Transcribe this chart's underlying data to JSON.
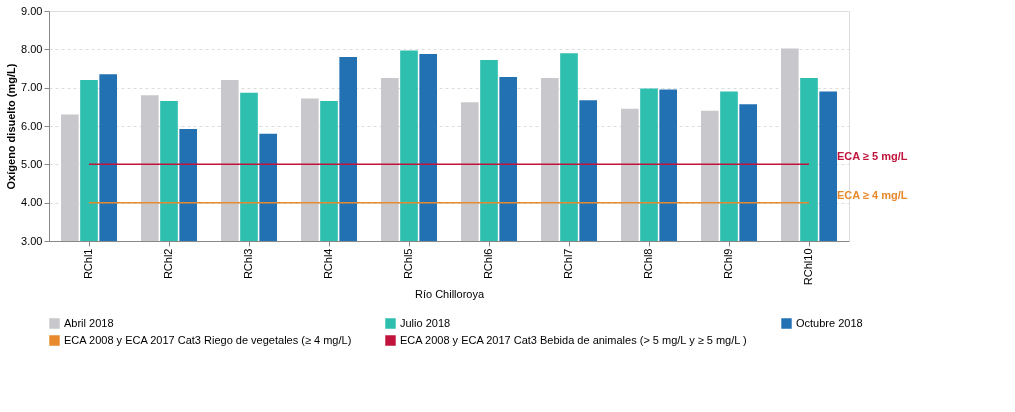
{
  "chart_data": {
    "type": "bar",
    "xlabel": "Río Chilloroya",
    "ylabel": "Oxígeno disuelto (mg/L)",
    "categories": [
      "RChl1",
      "RChl2",
      "RChl3",
      "RChl4",
      "RChl5",
      "RChl6",
      "RChl7",
      "RChl8",
      "RChl9",
      "RChl10"
    ],
    "series": [
      {
        "name": "Abril 2018",
        "color": "#c8c8cc",
        "values": [
          6.3,
          6.8,
          7.2,
          6.72,
          7.25,
          6.62,
          7.25,
          6.45,
          6.4,
          8.02
        ]
      },
      {
        "name": "Julio 2018",
        "color": "#2ebfae",
        "values": [
          7.2,
          6.65,
          6.87,
          6.65,
          7.97,
          7.72,
          7.9,
          6.98,
          6.9,
          7.25
        ]
      },
      {
        "name": "Octubre 2018",
        "color": "#2271b3",
        "values": [
          7.35,
          5.92,
          5.8,
          7.8,
          7.88,
          7.28,
          6.67,
          6.95,
          6.57,
          6.9
        ]
      },
      {
        "name": "ECA 2008 y ECA 2017 Cat3 Riego de vegetales (≥ 4 mg/L)",
        "type": "line",
        "color": "#e8892c",
        "values": [
          4,
          4,
          4,
          4,
          4,
          4,
          4,
          4,
          4,
          4
        ]
      },
      {
        "name": "ECA 2008 y ECA 2017 Cat3 Bebida de animales (> 5 mg/L y ≥ 5 mg/L )",
        "type": "line",
        "color": "#c0143c",
        "values": [
          5,
          5,
          5,
          5,
          5,
          5,
          5,
          5,
          5,
          5
        ]
      }
    ],
    "annotations": [
      {
        "text": "ECA ≥ 5 mg/L",
        "x": "RChl10",
        "y": 5
      },
      {
        "text": "ECA ≥ 4 mg/L",
        "x": "RChl10",
        "y": 4
      }
    ],
    "ylim": [
      3,
      9
    ],
    "yticks": [
      {
        "value": 3,
        "label": "3.00"
      },
      {
        "value": 4,
        "label": "4.00"
      },
      {
        "value": 5,
        "label": "5.00"
      },
      {
        "value": 6,
        "label": "6.00"
      },
      {
        "value": 7,
        "label": "7.00"
      },
      {
        "value": 8,
        "label": "8.00"
      },
      {
        "value": 9,
        "label": "9.00"
      }
    ],
    "grid": "y",
    "legend": "bottom"
  }
}
